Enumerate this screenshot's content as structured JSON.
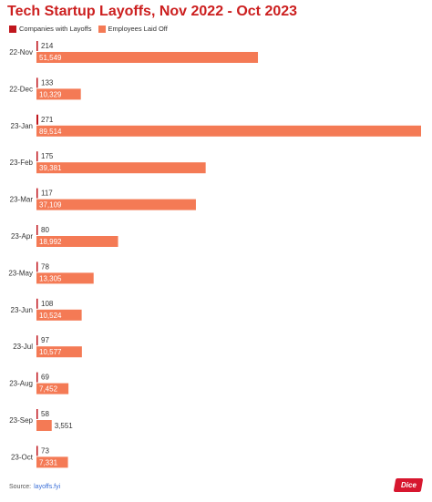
{
  "chart_data": {
    "type": "bar",
    "orientation": "horizontal",
    "title": "Tech Startup Layoffs, Nov 2022 - Oct 2023",
    "categories": [
      "22-Nov",
      "22-Dec",
      "23-Jan",
      "23-Feb",
      "23-Mar",
      "23-Apr",
      "23-May",
      "23-Jun",
      "23-Jul",
      "23-Aug",
      "23-Sep",
      "23-Oct"
    ],
    "series": [
      {
        "name": "Companies with Layoffs",
        "color": "#c0161d",
        "values": [
          214,
          133,
          271,
          175,
          117,
          80,
          78,
          108,
          97,
          69,
          58,
          73
        ],
        "labels": [
          "214",
          "133",
          "271",
          "175",
          "117",
          "80",
          "78",
          "108",
          "97",
          "69",
          "58",
          "73"
        ]
      },
      {
        "name": "Employees Laid Off",
        "color": "#f47a55",
        "values": [
          51549,
          10329,
          89514,
          39381,
          37109,
          18992,
          13305,
          10524,
          10577,
          7452,
          3551,
          7331
        ],
        "labels": [
          "51,549",
          "10,329",
          "89,514",
          "39,381",
          "37,109",
          "18,992",
          "13,305",
          "10,524",
          "10,577",
          "7,452",
          "3,551",
          "7,331"
        ]
      }
    ],
    "legend_position": "top-left",
    "grid": false
  },
  "source": {
    "label": "Source:",
    "link_text": "layoffs.fyi"
  },
  "logo": {
    "text": "Dice"
  }
}
